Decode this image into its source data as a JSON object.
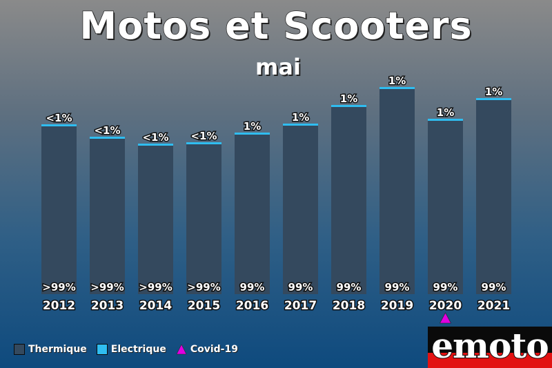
{
  "chart_data": {
    "type": "bar",
    "stacked": true,
    "title": "Motos et Scooters",
    "subtitle": "mai",
    "categories": [
      "2012",
      "2013",
      "2014",
      "2015",
      "2016",
      "2017",
      "2018",
      "2019",
      "2020",
      "2021"
    ],
    "values": [
      246,
      228,
      218,
      220,
      234,
      247,
      274,
      300,
      254,
      284
    ],
    "series": [
      {
        "name": "Thermique",
        "color": "#34495e",
        "labels": [
          ">99%",
          ">99%",
          ">99%",
          ">99%",
          "99%",
          "99%",
          "99%",
          "99%",
          "99%",
          "99%"
        ]
      },
      {
        "name": "Electrique",
        "color": "#2fbdf0",
        "labels": [
          "<1%",
          "<1%",
          "<1%",
          "<1%",
          "1%",
          "1%",
          "1%",
          "1%",
          "1%",
          "1%"
        ]
      }
    ],
    "markers": [
      {
        "name": "Covid-19",
        "category": "2020",
        "color": "#e000e0",
        "shape": "triangle"
      }
    ],
    "grid": false,
    "legend_position": "bottom-left"
  },
  "legend": {
    "thermique": "Thermique",
    "electrique": "Electrique",
    "covid": "Covid-19"
  },
  "logo": {
    "text": "emoto"
  }
}
